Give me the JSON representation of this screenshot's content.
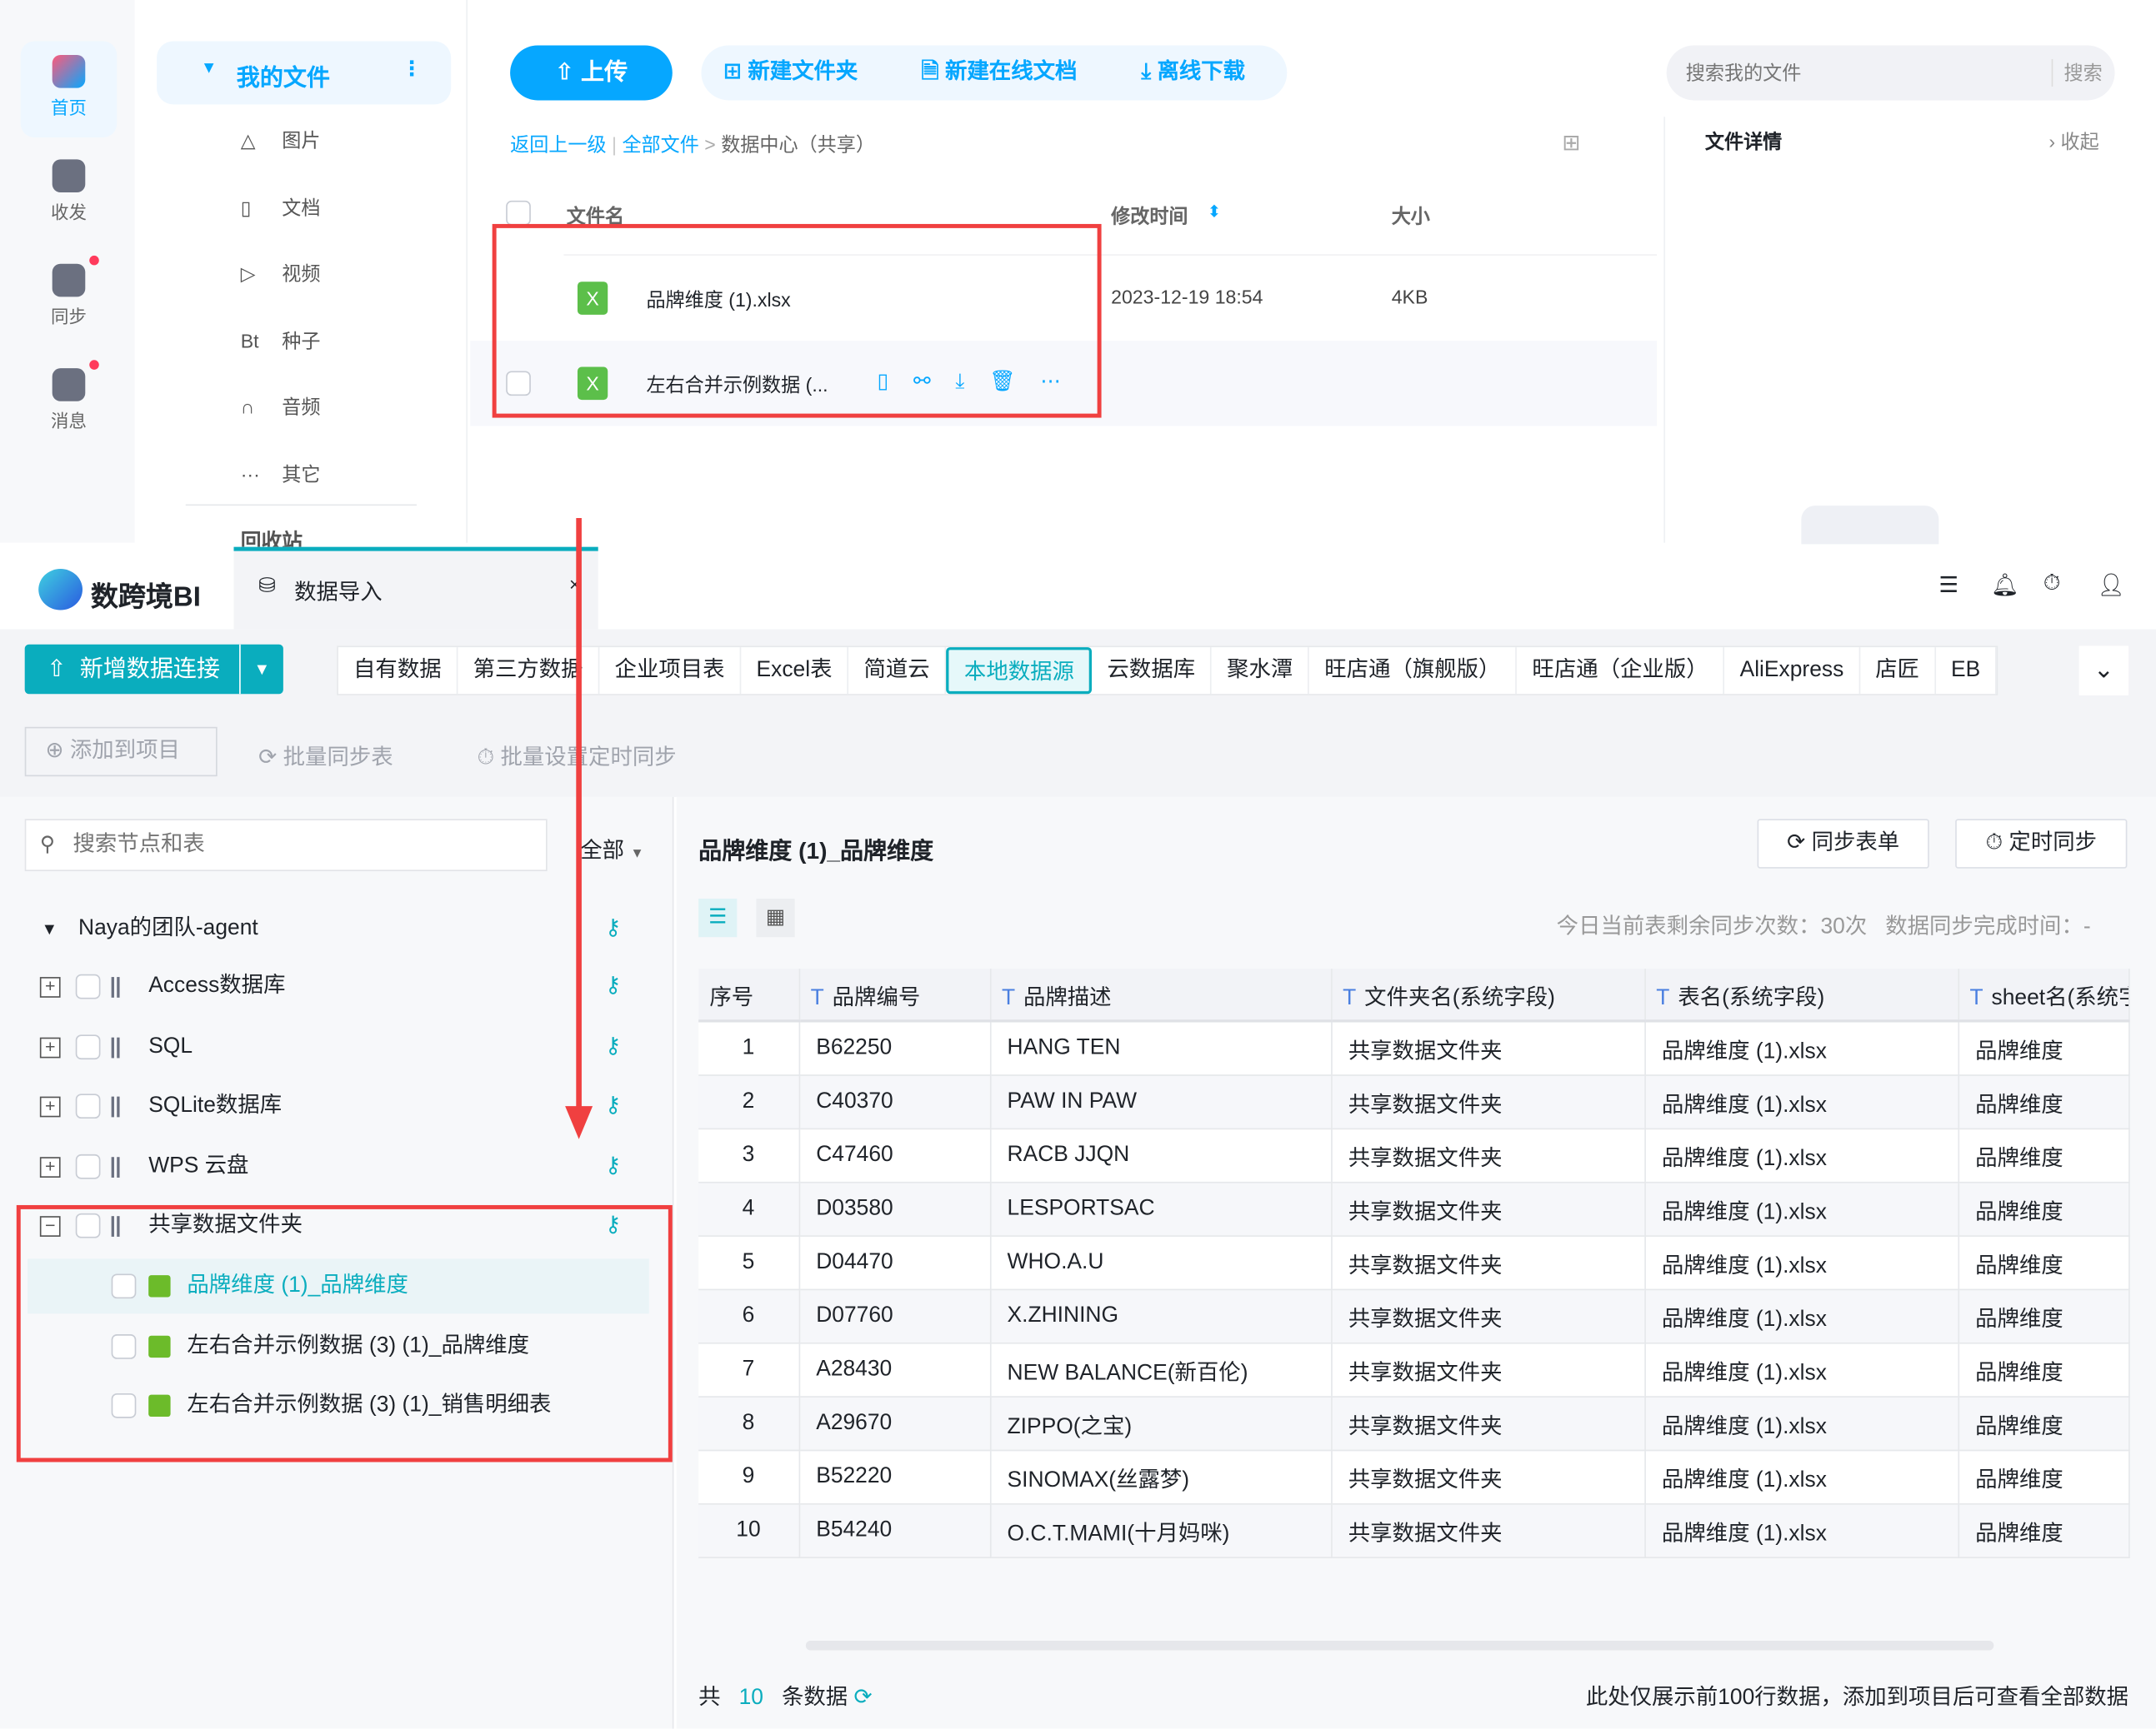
{
  "netdisk": {
    "rail": [
      {
        "label": "首页",
        "icon": "home-icon",
        "active": true
      },
      {
        "label": "收发",
        "icon": "share-folder-icon"
      },
      {
        "label": "同步",
        "icon": "sync-icon",
        "badge": true
      },
      {
        "label": "消息",
        "icon": "message-icon",
        "badge": true
      }
    ],
    "sidebar": {
      "title": "我的文件",
      "items": [
        {
          "icon": "△",
          "label": "图片"
        },
        {
          "icon": "▯",
          "label": "文档"
        },
        {
          "icon": "▷",
          "label": "视频"
        },
        {
          "icon": "Bt",
          "label": "种子"
        },
        {
          "icon": "∩",
          "label": "音频"
        },
        {
          "icon": "···",
          "label": "其它"
        }
      ],
      "recycle": "回收站"
    },
    "toolbar": {
      "upload": "上传",
      "new_folder": "新建文件夹",
      "new_doc": "新建在线文档",
      "offline": "离线下载"
    },
    "search": {
      "placeholder": "搜索我的文件",
      "button": "搜索"
    },
    "breadcrumb": {
      "back": "返回上一级",
      "all": "全部文件",
      "current": "数据中心（共享）"
    },
    "columns": {
      "name": "文件名",
      "modified": "修改时间",
      "size": "大小"
    },
    "files": [
      {
        "name": "品牌维度 (1).xlsx",
        "modified": "2023-12-19 18:54",
        "size": "4KB"
      },
      {
        "name": "左右合并示例数据 (..."
      }
    ],
    "details": {
      "title": "文件详情",
      "collapse": "收起"
    }
  },
  "bi": {
    "logo": "数跨境BI",
    "tab": "数据导入",
    "new_connection": "新增数据连接",
    "source_tabs": [
      "自有数据",
      "第三方数据",
      "企业项目表",
      "Excel表",
      "简道云",
      "本地数据源",
      "云数据库",
      "聚水潭",
      "旺店通（旗舰版）",
      "旺店通（企业版）",
      "AliExpress",
      "店匠",
      "EB"
    ],
    "active_tab": "本地数据源",
    "actions": {
      "add": "添加到项目",
      "batch_sync": "批量同步表",
      "batch_timer": "批量设置定时同步"
    },
    "tree_search_placeholder": "搜索节点和表",
    "filter": "全部",
    "tree": {
      "root": "Naya的团队-agent",
      "nodes": [
        "Access数据库",
        "SQL",
        "SQLite数据库",
        "WPS 云盘",
        "共享数据文件夹"
      ],
      "children": [
        "品牌维度 (1)_品牌维度",
        "左右合并示例数据 (3) (1)_品牌维度",
        "左右合并示例数据 (3) (1)_销售明细表"
      ],
      "selected_child": "品牌维度 (1)_品牌维度"
    },
    "table_title": "品牌维度 (1)_品牌维度",
    "sync_button": "同步表单",
    "timer_button": "定时同步",
    "sync_info": "今日当前表剩余同步次数：30次   数据同步完成时间：-",
    "columns": [
      "序号",
      "品牌编号",
      "品牌描述",
      "文件夹名(系统字段)",
      "表名(系统字段)",
      "sheet名(系统字段)"
    ],
    "rows": [
      [
        "1",
        "B62250",
        "HANG TEN",
        "共享数据文件夹",
        "品牌维度 (1).xlsx",
        "品牌维度"
      ],
      [
        "2",
        "C40370",
        "PAW IN PAW",
        "共享数据文件夹",
        "品牌维度 (1).xlsx",
        "品牌维度"
      ],
      [
        "3",
        "C47460",
        "RACB JJQN",
        "共享数据文件夹",
        "品牌维度 (1).xlsx",
        "品牌维度"
      ],
      [
        "4",
        "D03580",
        "LESPORTSAC",
        "共享数据文件夹",
        "品牌维度 (1).xlsx",
        "品牌维度"
      ],
      [
        "5",
        "D04470",
        "WHO.A.U",
        "共享数据文件夹",
        "品牌维度 (1).xlsx",
        "品牌维度"
      ],
      [
        "6",
        "D07760",
        "X.ZHINING",
        "共享数据文件夹",
        "品牌维度 (1).xlsx",
        "品牌维度"
      ],
      [
        "7",
        "A28430",
        "NEW BALANCE(新百伦)",
        "共享数据文件夹",
        "品牌维度 (1).xlsx",
        "品牌维度"
      ],
      [
        "8",
        "A29670",
        "ZIPPO(之宝)",
        "共享数据文件夹",
        "品牌维度 (1).xlsx",
        "品牌维度"
      ],
      [
        "9",
        "B52220",
        "SINOMAX(丝露梦)",
        "共享数据文件夹",
        "品牌维度 (1).xlsx",
        "品牌维度"
      ],
      [
        "10",
        "B54240",
        "O.C.T.MAMI(十月妈咪)",
        "共享数据文件夹",
        "品牌维度 (1).xlsx",
        "品牌维度"
      ]
    ],
    "footer": {
      "prefix": "共",
      "count": "10",
      "suffix": "条数据",
      "note": "此处仅展示前100行数据，添加到项目后可查看全部数据"
    },
    "accent": "#0aadbe"
  }
}
